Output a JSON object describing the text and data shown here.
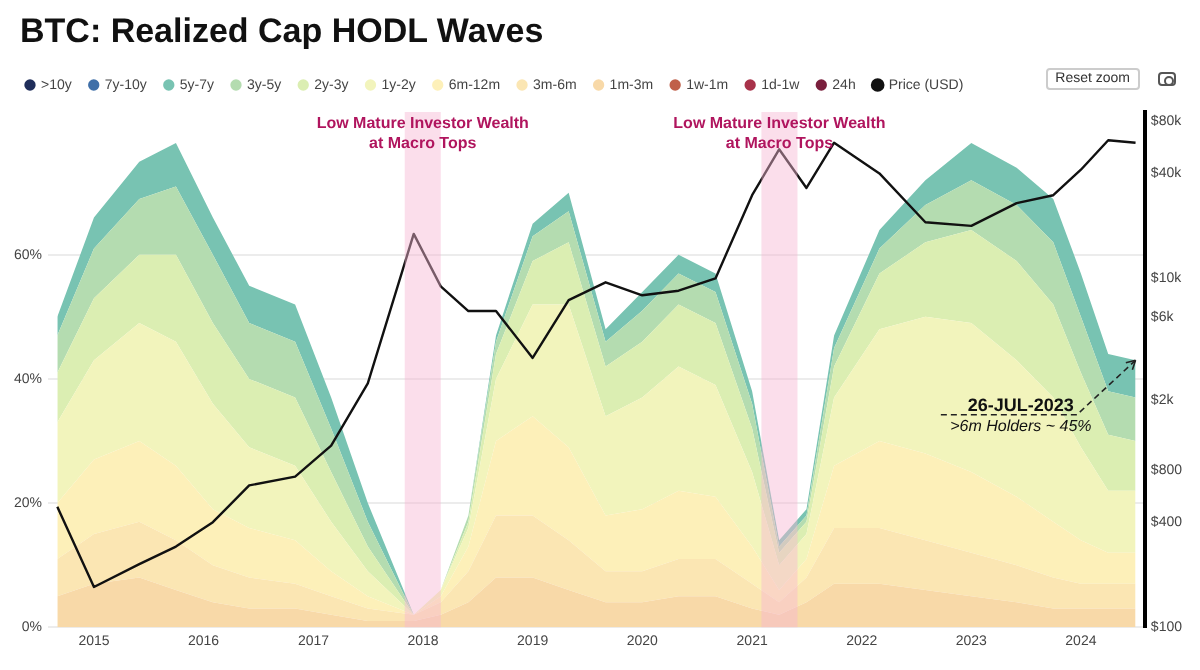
{
  "chart_data": {
    "type": "area",
    "title": "BTC: Realized Cap HODL Waves",
    "stacked": true,
    "legend": "top left",
    "grid": "y",
    "log": "y2",
    "marker": "none",
    "x": [
      "2014-09",
      "2015-01",
      "2015-06",
      "2015-10",
      "2016-02",
      "2016-06",
      "2016-11",
      "2017-03",
      "2017-07",
      "2017-12",
      "2018-03",
      "2018-06",
      "2018-09",
      "2019-01",
      "2019-05",
      "2019-09",
      "2020-01",
      "2020-05",
      "2020-09",
      "2021-01",
      "2021-04",
      "2021-07",
      "2021-10",
      "2022-03",
      "2022-08",
      "2023-01",
      "2023-06",
      "2023-10",
      "2024-01",
      "2024-04",
      "2024-07"
    ],
    "xlim": [
      "2014-08",
      "2024-08"
    ],
    "xticks": [
      "2015",
      "2016",
      "2017",
      "2018",
      "2019",
      "2020",
      "2021",
      "2022",
      "2023",
      "2024"
    ],
    "ylim": [
      0,
      83
    ],
    "yticks": [
      {
        "value": 0,
        "label": "0%"
      },
      {
        "value": 20,
        "label": "20%"
      },
      {
        "value": 40,
        "label": "40%"
      },
      {
        "value": 60,
        "label": "60%"
      }
    ],
    "y2lim": [
      100,
      90000
    ],
    "y2ticks": [
      {
        "value": 100,
        "label": "$100"
      },
      {
        "value": 400,
        "label": "$400"
      },
      {
        "value": 800,
        "label": "$800"
      },
      {
        "value": 2000,
        "label": "$2k"
      },
      {
        "value": 6000,
        "label": "$6k"
      },
      {
        "value": 10000,
        "label": "$10k"
      },
      {
        "value": 40000,
        "label": "$40k"
      },
      {
        "value": 80000,
        "label": "$80k"
      }
    ],
    "series": [
      {
        "name": "24h",
        "color": "#7a1f3d",
        "values": [
          null,
          null,
          null,
          null,
          null,
          null,
          null,
          null,
          null,
          null,
          null,
          null,
          null,
          null,
          null,
          null,
          null,
          null,
          null,
          null,
          null,
          null,
          null,
          null,
          null,
          null,
          null,
          null,
          null,
          null,
          null
        ]
      },
      {
        "name": "1d-1w",
        "color": "#a8324a",
        "values": [
          null,
          null,
          null,
          null,
          null,
          null,
          null,
          null,
          null,
          null,
          null,
          null,
          null,
          null,
          null,
          null,
          null,
          null,
          null,
          null,
          null,
          null,
          null,
          null,
          null,
          null,
          null,
          null,
          null,
          null,
          null
        ]
      },
      {
        "name": "1w-1m",
        "color": "#c0604a",
        "values": [
          null,
          null,
          null,
          null,
          null,
          null,
          null,
          null,
          null,
          null,
          null,
          null,
          null,
          null,
          null,
          null,
          null,
          null,
          null,
          null,
          null,
          null,
          null,
          null,
          null,
          null,
          null,
          null,
          null,
          null,
          null
        ]
      },
      {
        "name": "1m-3m",
        "color": "#f8d9a8",
        "values": [
          5,
          7,
          8,
          6,
          4,
          3,
          3,
          2,
          1,
          1,
          2,
          4,
          8,
          8,
          6,
          4,
          4,
          5,
          5,
          3,
          2,
          4,
          7,
          7,
          6,
          5,
          4,
          3,
          3,
          3,
          3
        ]
      },
      {
        "name": "3m-6m",
        "color": "#fbe6b3",
        "values": [
          6,
          8,
          9,
          8,
          6,
          5,
          4,
          3,
          2,
          1,
          2,
          5,
          10,
          10,
          8,
          5,
          5,
          6,
          6,
          4,
          2,
          4,
          9,
          9,
          8,
          7,
          6,
          5,
          4,
          4,
          4
        ]
      },
      {
        "name": "6m-12m",
        "color": "#fdf0b9",
        "values": [
          9,
          12,
          13,
          12,
          9,
          8,
          7,
          4,
          2,
          0,
          1,
          4,
          12,
          16,
          15,
          9,
          10,
          11,
          10,
          6,
          2,
          3,
          10,
          14,
          14,
          13,
          11,
          9,
          7,
          5,
          5
        ]
      },
      {
        "name": "1y-2y",
        "color": "#f2f4bc",
        "values": [
          13,
          16,
          19,
          20,
          17,
          13,
          12,
          8,
          4,
          0,
          1,
          3,
          10,
          18,
          23,
          16,
          18,
          20,
          18,
          12,
          4,
          4,
          11,
          18,
          22,
          24,
          22,
          20,
          15,
          10,
          10
        ]
      },
      {
        "name": "2y-3y",
        "color": "#dbeeb2",
        "values": [
          8,
          10,
          11,
          14,
          13,
          11,
          11,
          8,
          4,
          0,
          0,
          1,
          4,
          7,
          10,
          8,
          9,
          10,
          10,
          7,
          2,
          2,
          5,
          9,
          12,
          15,
          16,
          15,
          12,
          9,
          8
        ]
      },
      {
        "name": "3y-5y",
        "color": "#b4dcb0",
        "values": [
          6,
          8,
          9,
          11,
          11,
          9,
          9,
          7,
          4,
          0,
          0,
          1,
          2,
          4,
          5,
          4,
          5,
          5,
          5,
          4,
          1,
          1,
          3,
          4,
          6,
          8,
          9,
          10,
          9,
          7,
          7
        ]
      },
      {
        "name": "5y-7y",
        "color": "#78c3b2",
        "values": [
          3,
          5,
          6,
          7,
          6,
          6,
          6,
          5,
          3,
          0,
          0,
          0,
          1,
          2,
          3,
          2,
          3,
          3,
          3,
          2,
          1,
          1,
          2,
          3,
          4,
          6,
          6,
          7,
          7,
          6,
          6
        ]
      },
      {
        "name": "7y-10y",
        "color": "#3f6fa8",
        "values": [
          null,
          null,
          null,
          null,
          null,
          null,
          null,
          null,
          null,
          null,
          null,
          null,
          null,
          null,
          null,
          null,
          null,
          null,
          null,
          null,
          null,
          null,
          null,
          null,
          null,
          null,
          null,
          null,
          null,
          null,
          null
        ]
      },
      {
        "name": ">10y",
        "color": "#1f2d5a",
        "values": [
          null,
          null,
          null,
          null,
          null,
          null,
          null,
          null,
          null,
          null,
          null,
          null,
          null,
          null,
          null,
          null,
          null,
          null,
          null,
          null,
          null,
          null,
          null,
          null,
          null,
          null,
          null,
          null,
          null,
          null,
          null
        ]
      },
      {
        "name": "Price (USD)",
        "type": "line",
        "axis": "y2",
        "color": "#111111",
        "values": [
          490,
          170,
          230,
          290,
          400,
          650,
          730,
          1100,
          2500,
          18000,
          9000,
          6500,
          6500,
          3500,
          7500,
          9500,
          8000,
          8500,
          10000,
          30000,
          55000,
          33000,
          60000,
          40000,
          21000,
          20000,
          27000,
          30000,
          42000,
          62000,
          60000
        ]
      }
    ],
    "bands": [
      {
        "axis": "x",
        "from": "2017-11",
        "to": "2018-03",
        "label": "Low Mature Investor Wealth at Macro Tops",
        "color": "#f7b6d2"
      },
      {
        "axis": "x",
        "from": "2021-02",
        "to": "2021-06",
        "label": "Low Mature Investor Wealth at Macro Tops",
        "color": "#f7b6d2"
      }
    ],
    "annotations": [
      "26-JUL-2023",
      {
        "text": ">6m Holders ~ 45%",
        "x": "2024-07",
        "y": 43
      },
      "Reset zoom"
    ]
  }
}
